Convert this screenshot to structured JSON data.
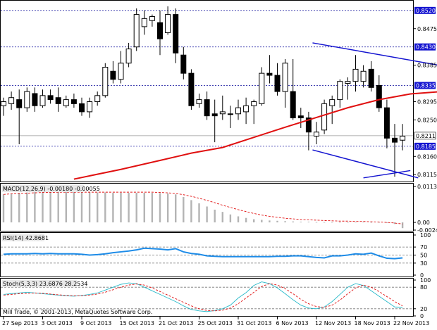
{
  "chart_data": [
    {
      "type": "candlestick",
      "ylim": [
        0.8098,
        0.8544
      ],
      "y_ticks": [
        "0.8475",
        "0.8385",
        "0.8295",
        "0.8250",
        "0.8160",
        "0.8115"
      ],
      "highlighted_levels": [
        {
          "value": 0.852,
          "label": "0.8520",
          "color": "#1414d0"
        },
        {
          "value": 0.843,
          "label": "0.8430",
          "color": "#1414d0"
        },
        {
          "value": 0.8335,
          "label": "0.8335",
          "color": "#1414d0"
        },
        {
          "value": 0.8185,
          "label": "0.8185",
          "color": "#1414d0"
        }
      ],
      "current_price": {
        "value": 0.8211,
        "label": "0.8211"
      },
      "moving_average": {
        "color": "#e01010",
        "values": [
          [
            9,
            0.8104
          ],
          [
            15,
            0.8128
          ],
          [
            20,
            0.815
          ],
          [
            24,
            0.8168
          ],
          [
            28,
            0.8182
          ],
          [
            32,
            0.8207
          ],
          [
            36,
            0.8232
          ],
          [
            40,
            0.8256
          ],
          [
            44,
            0.828
          ],
          [
            48,
            0.83
          ],
          [
            52,
            0.8314
          ],
          [
            56,
            0.832
          ]
        ]
      },
      "channel_lines": [
        {
          "from": [
            39.5,
            0.844
          ],
          "to": [
            60,
            0.837
          ],
          "color": "#1414d0"
        },
        {
          "from": [
            39.5,
            0.8176
          ],
          "to": [
            53,
            0.8107
          ],
          "color": "#1414d0"
        },
        {
          "from": [
            46,
            0.8107
          ],
          "to": [
            52,
            0.8125
          ],
          "color": "#1414d0"
        }
      ],
      "candles": [
        [
          0.8285,
          0.8305,
          0.826,
          0.8295
        ],
        [
          0.829,
          0.832,
          0.8275,
          0.8305
        ],
        [
          0.83,
          0.8325,
          0.819,
          0.828
        ],
        [
          0.828,
          0.833,
          0.827,
          0.832
        ],
        [
          0.8315,
          0.833,
          0.827,
          0.8285
        ],
        [
          0.8285,
          0.8325,
          0.828,
          0.831
        ],
        [
          0.831,
          0.8325,
          0.829,
          0.83
        ],
        [
          0.8305,
          0.833,
          0.827,
          0.829
        ],
        [
          0.8285,
          0.831,
          0.828,
          0.83
        ],
        [
          0.83,
          0.8315,
          0.828,
          0.829
        ],
        [
          0.829,
          0.8305,
          0.826,
          0.827
        ],
        [
          0.827,
          0.8305,
          0.8255,
          0.8295
        ],
        [
          0.8295,
          0.832,
          0.8285,
          0.831
        ],
        [
          0.831,
          0.839,
          0.8305,
          0.838
        ],
        [
          0.837,
          0.8395,
          0.834,
          0.835
        ],
        [
          0.835,
          0.842,
          0.834,
          0.839
        ],
        [
          0.839,
          0.844,
          0.838,
          0.8425
        ],
        [
          0.843,
          0.8525,
          0.842,
          0.851
        ],
        [
          0.848,
          0.852,
          0.846,
          0.85
        ],
        [
          0.8495,
          0.851,
          0.848,
          0.8505
        ],
        [
          0.849,
          0.852,
          0.841,
          0.845
        ],
        [
          0.8465,
          0.853,
          0.846,
          0.851
        ],
        [
          0.851,
          0.8525,
          0.839,
          0.8415
        ],
        [
          0.841,
          0.843,
          0.835,
          0.8365
        ],
        [
          0.8365,
          0.8375,
          0.8275,
          0.8285
        ],
        [
          0.829,
          0.8315,
          0.828,
          0.83
        ],
        [
          0.83,
          0.832,
          0.825,
          0.826
        ],
        [
          0.8265,
          0.83,
          0.8195,
          0.826
        ],
        [
          0.8265,
          0.831,
          0.825,
          0.827
        ],
        [
          0.8265,
          0.8285,
          0.823,
          0.8265
        ],
        [
          0.8265,
          0.83,
          0.825,
          0.828
        ],
        [
          0.827,
          0.8305,
          0.824,
          0.8285
        ],
        [
          0.8285,
          0.83,
          0.824,
          0.8295
        ],
        [
          0.829,
          0.838,
          0.8285,
          0.8365
        ],
        [
          0.8365,
          0.841,
          0.834,
          0.836
        ],
        [
          0.836,
          0.839,
          0.831,
          0.832
        ],
        [
          0.832,
          0.84,
          0.828,
          0.839
        ],
        [
          0.832,
          0.84,
          0.825,
          0.8255
        ],
        [
          0.826,
          0.828,
          0.823,
          0.8255
        ],
        [
          0.8255,
          0.827,
          0.8175,
          0.822
        ],
        [
          0.821,
          0.8245,
          0.819,
          0.822
        ],
        [
          0.8225,
          0.83,
          0.8215,
          0.829
        ],
        [
          0.8285,
          0.831,
          0.824,
          0.83
        ],
        [
          0.83,
          0.835,
          0.828,
          0.8345
        ],
        [
          0.834,
          0.8355,
          0.83,
          0.8345
        ],
        [
          0.8345,
          0.841,
          0.832,
          0.8375
        ],
        [
          0.8345,
          0.8385,
          0.833,
          0.837
        ],
        [
          0.8375,
          0.8395,
          0.832,
          0.833
        ],
        [
          0.8335,
          0.836,
          0.827,
          0.828
        ],
        [
          0.828,
          0.83,
          0.818,
          0.8205
        ],
        [
          0.8205,
          0.824,
          0.811,
          0.8195
        ],
        [
          0.82,
          0.824,
          0.8175,
          0.821
        ]
      ]
    },
    {
      "type": "bar",
      "label": "MACD(12,26,9) -0.00180 -0.00055",
      "ylim": [
        -0.00242,
        0.0113
      ],
      "y_ticks": [
        "0.0113",
        "0.00",
        "-0.00242"
      ],
      "values": [
        0.0088,
        0.0091,
        0.0093,
        0.0094,
        0.0096,
        0.0097,
        0.0098,
        0.0098,
        0.0097,
        0.0097,
        0.0096,
        0.0095,
        0.0094,
        0.0094,
        0.0093,
        0.0093,
        0.0093,
        0.0093,
        0.0093,
        0.0093,
        0.0092,
        0.0091,
        0.0088,
        0.008,
        0.007,
        0.006,
        0.005,
        0.004,
        0.0033,
        0.0025,
        0.0019,
        0.0014,
        0.001,
        0.0008,
        0.0006,
        0.0005,
        0.0004,
        0.0003,
        0.0002,
        0.0002,
        0.0001,
        0.0001,
        0.0001,
        0.0001,
        0.0001,
        0.0002,
        0.0002,
        0.0001,
        0.0001,
        -0.0,
        -0.0005,
        -0.0018
      ],
      "signal": [
        0.0088,
        0.009,
        0.0091,
        0.0092,
        0.0093,
        0.0094,
        0.0094,
        0.0095,
        0.0095,
        0.0095,
        0.0095,
        0.0095,
        0.0095,
        0.0095,
        0.0095,
        0.0095,
        0.0095,
        0.0095,
        0.0095,
        0.0095,
        0.0094,
        0.0093,
        0.0091,
        0.0087,
        0.0082,
        0.0076,
        0.0069,
        0.0062,
        0.0054,
        0.0047,
        0.004,
        0.0034,
        0.0028,
        0.0023,
        0.0019,
        0.0016,
        0.0013,
        0.0011,
        0.0009,
        0.0008,
        0.0007,
        0.0006,
        0.0005,
        0.0004,
        0.0004,
        0.0003,
        0.0003,
        0.0002,
        0.0001,
        0.0,
        -0.0002,
        -0.0005
      ],
      "bar_color": "#b4b4b4",
      "signal_color": "#e01010"
    },
    {
      "type": "line",
      "label": "RSI(14) 42.8681",
      "ylim": [
        0,
        100
      ],
      "y_ticks": [
        "100",
        "70",
        "50",
        "30",
        "0"
      ],
      "levels": [
        70,
        50,
        30
      ],
      "values": [
        52,
        53,
        53,
        53,
        54,
        53,
        54,
        53,
        53,
        53,
        52,
        50,
        51,
        53,
        56,
        58,
        60,
        63,
        67,
        66,
        65,
        63,
        66,
        58,
        54,
        52,
        48,
        47,
        46,
        46,
        46,
        46,
        46,
        46,
        46,
        47,
        47,
        48,
        48,
        46,
        44,
        43,
        48,
        48,
        50,
        53,
        52,
        55,
        48,
        42,
        41,
        43
      ],
      "color": "#1e8ce8"
    },
    {
      "type": "line",
      "label": "Stoch(5,3,3) 23.6876 28.2534",
      "ylim": [
        0,
        100
      ],
      "y_ticks": [
        "100",
        "80",
        "20",
        "0"
      ],
      "levels": [
        80,
        20
      ],
      "series": [
        {
          "color": "#2abaca",
          "values": [
            60,
            62,
            64,
            66,
            64,
            62,
            60,
            58,
            56,
            55,
            57,
            60,
            64,
            72,
            80,
            88,
            92,
            90,
            80,
            70,
            60,
            50,
            40,
            28,
            18,
            14,
            12,
            15,
            20,
            30,
            50,
            65,
            85,
            95,
            90,
            78,
            62,
            45,
            30,
            22,
            20,
            25,
            40,
            60,
            80,
            90,
            85,
            70,
            55,
            40,
            25,
            24
          ]
        },
        {
          "color": "#e01010",
          "values": [
            58,
            60,
            62,
            63,
            64,
            63,
            61,
            59,
            57,
            56,
            56,
            58,
            61,
            66,
            73,
            80,
            86,
            89,
            86,
            78,
            68,
            58,
            48,
            38,
            28,
            20,
            15,
            14,
            16,
            22,
            34,
            50,
            66,
            82,
            90,
            86,
            76,
            62,
            46,
            34,
            26,
            24,
            30,
            44,
            62,
            78,
            86,
            80,
            68,
            54,
            40,
            28
          ]
        }
      ]
    }
  ],
  "x_labels": [
    "27 Sep 2013",
    "3 Oct 2013",
    "9 Oct 2013",
    "15 Oct 2013",
    "21 Oct 2013",
    "25 Oct 2013",
    "31 Oct 2013",
    "6 Nov 2013",
    "12 Nov 2013",
    "18 Nov 2013",
    "22 Nov 2013"
  ],
  "copyright": "Mill Trade, © 2001-2013, MetaQuotes Software Corp."
}
